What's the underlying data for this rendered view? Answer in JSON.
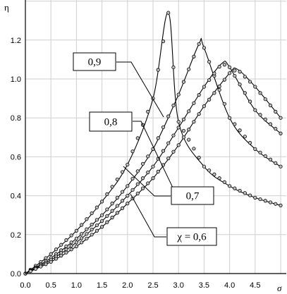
{
  "chart_data": {
    "type": "line",
    "xlabel": "σ",
    "ylabel": "η",
    "xlim": [
      0,
      5.0
    ],
    "ylim": [
      0,
      1.4
    ],
    "x_ticks": [
      "0.0",
      "0.5",
      "1.0",
      "1.5",
      "2.0",
      "2.5",
      "3.0",
      "3.5",
      "4.0",
      "4.5"
    ],
    "y_ticks": [
      "0.0",
      "0.2",
      "0.4",
      "0.6",
      "0.8",
      "1.0",
      "1.2"
    ],
    "grid": true,
    "series": [
      {
        "name": "0,9",
        "x": [
          0.0,
          0.5,
          1.0,
          1.5,
          2.0,
          2.5,
          2.8,
          3.0,
          3.5,
          4.0,
          4.5,
          5.0
        ],
        "y": [
          0.0,
          0.1,
          0.22,
          0.37,
          0.56,
          0.9,
          1.34,
          0.78,
          0.55,
          0.45,
          0.39,
          0.35
        ]
      },
      {
        "name": "0,8",
        "x": [
          0.0,
          0.5,
          1.0,
          1.5,
          2.0,
          2.5,
          3.0,
          3.4,
          3.5,
          4.0,
          4.5,
          5.0
        ],
        "y": [
          0.0,
          0.08,
          0.18,
          0.3,
          0.45,
          0.64,
          0.92,
          1.18,
          1.16,
          0.8,
          0.64,
          0.55
        ]
      },
      {
        "name": "0,7",
        "x": [
          0.0,
          0.5,
          1.0,
          1.5,
          2.0,
          2.5,
          3.0,
          3.5,
          3.85,
          4.0,
          4.5,
          5.0
        ],
        "y": [
          0.0,
          0.07,
          0.16,
          0.27,
          0.4,
          0.55,
          0.75,
          0.96,
          1.08,
          1.06,
          0.84,
          0.72
        ]
      },
      {
        "name": "χ = 0,6",
        "x": [
          0.0,
          0.5,
          1.0,
          1.5,
          2.0,
          2.5,
          3.0,
          3.5,
          4.0,
          4.15,
          4.5,
          5.0
        ],
        "y": [
          0.0,
          0.06,
          0.14,
          0.24,
          0.36,
          0.49,
          0.66,
          0.86,
          1.03,
          1.05,
          0.96,
          0.8
        ]
      }
    ]
  }
}
